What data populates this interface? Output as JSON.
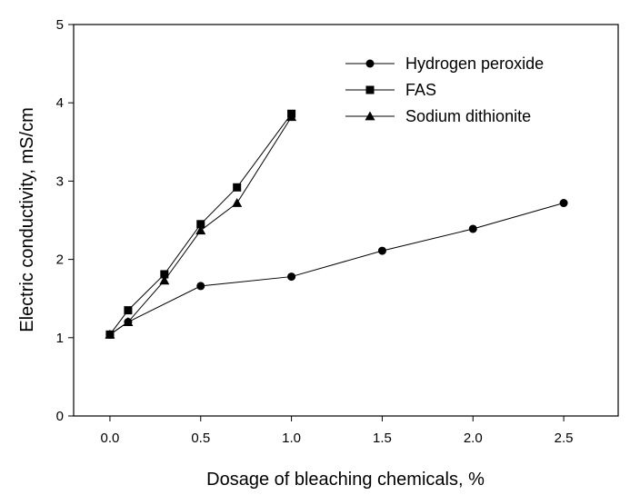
{
  "chart_data": {
    "type": "line",
    "xlabel": "Dosage of bleaching chemicals, %",
    "ylabel": "Electric conductivity, mS/cm",
    "xlim": [
      -0.2,
      2.8
    ],
    "ylim": [
      0,
      5
    ],
    "xticks": [
      "0.0",
      "0.5",
      "1.0",
      "1.5",
      "2.0",
      "2.5"
    ],
    "yticks": [
      "0",
      "1",
      "2",
      "3",
      "4",
      "5"
    ],
    "grid": false,
    "legend_position": "top-right",
    "series": [
      {
        "name": "Hydrogen peroxide",
        "marker": "circle",
        "x": [
          0.0,
          0.1,
          0.5,
          1.0,
          1.5,
          2.0,
          2.5
        ],
        "y": [
          1.04,
          1.2,
          1.66,
          1.78,
          2.11,
          2.39,
          2.72
        ]
      },
      {
        "name": "FAS",
        "marker": "square",
        "x": [
          0.0,
          0.1,
          0.3,
          0.5,
          0.7,
          1.0
        ],
        "y": [
          1.04,
          1.35,
          1.81,
          2.45,
          2.92,
          3.86
        ]
      },
      {
        "name": "Sodium dithionite",
        "marker": "triangle",
        "x": [
          0.0,
          0.1,
          0.3,
          0.5,
          0.7,
          1.0
        ],
        "y": [
          1.04,
          1.2,
          1.73,
          2.37,
          2.72,
          3.82
        ]
      }
    ]
  }
}
